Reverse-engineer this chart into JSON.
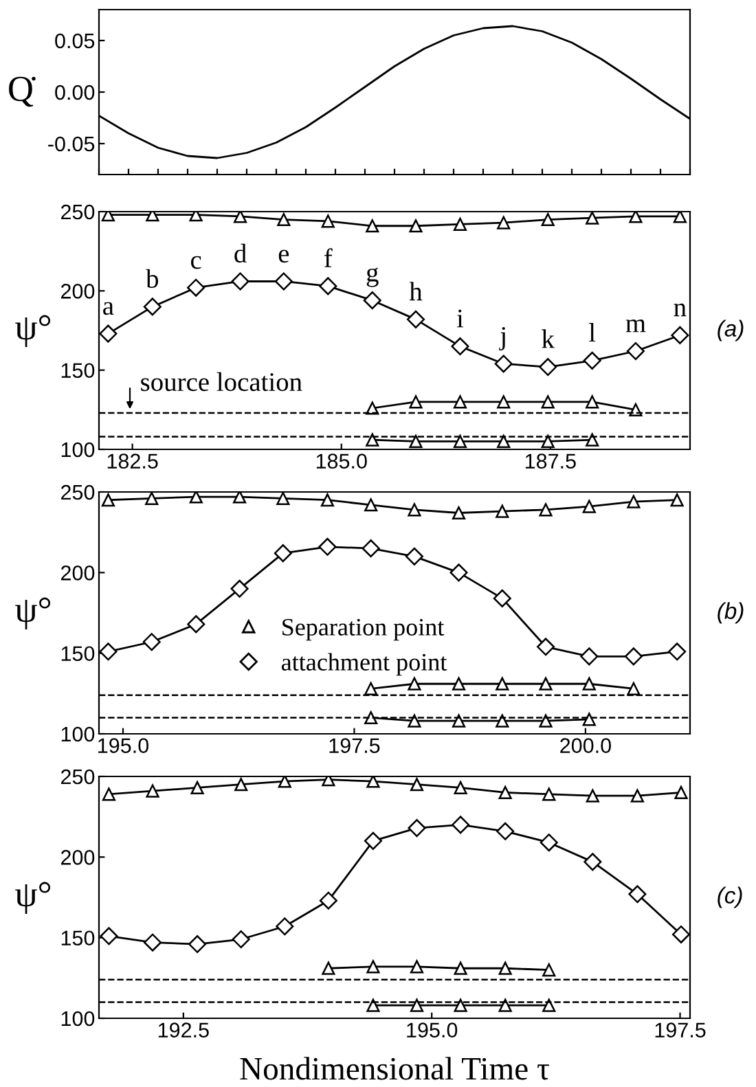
{
  "chart_data": [
    {
      "type": "line",
      "ylabel": "Q̇",
      "categories": [
        null,
        null,
        null,
        null,
        null,
        null,
        null,
        null,
        null,
        null,
        null,
        null,
        null,
        null,
        null,
        null,
        null,
        null,
        null,
        null,
        null
      ],
      "series": [
        {
          "color": "#000000",
          "values": [
            -0.023,
            -0.04,
            -0.054,
            -0.062,
            -0.064,
            -0.059,
            -0.049,
            -0.034,
            -0.015,
            0.005,
            0.025,
            0.042,
            0.055,
            0.062,
            0.064,
            0.059,
            0.048,
            0.032,
            0.013,
            -0.007,
            -0.026
          ]
        }
      ],
      "ylim": [
        -0.08,
        0.08
      ],
      "yticks": [
        {
          "value": -0.05,
          "label": "-0.05"
        },
        {
          "value": 0,
          "label": "0.00"
        },
        {
          "value": 0.05,
          "label": "0.05"
        }
      ],
      "tick_labels": "y",
      "marker": "none",
      "grid": false,
      "legend": false
    },
    {
      "type": "line",
      "ylabel": "ψ°",
      "xlim": [
        182.1,
        189.17
      ],
      "ylim": [
        100,
        250
      ],
      "xticks": [
        {
          "value": 182.5,
          "label": "182.5"
        },
        {
          "value": 185,
          "label": "185.0"
        },
        {
          "value": 187.5,
          "label": "187.5"
        }
      ],
      "yticks": [
        100,
        150,
        200,
        250
      ],
      "grid": false,
      "legend": false,
      "series": [
        {
          "color": "#000000",
          "marker": "triangle",
          "x": [
            182.21,
            182.74,
            183.26,
            183.79,
            184.31,
            184.84,
            185.37,
            185.89,
            186.42,
            186.94,
            187.47,
            188.0,
            188.52,
            189.05
          ],
          "values": [
            248,
            248,
            248,
            247,
            245,
            244,
            241,
            241,
            242,
            243,
            245,
            246,
            247,
            247
          ]
        },
        {
          "color": "#000000",
          "marker": "diamond",
          "x": [
            182.21,
            182.74,
            183.26,
            183.79,
            184.31,
            184.84,
            185.37,
            185.89,
            186.42,
            186.94,
            187.47,
            188.0,
            188.52,
            189.05
          ],
          "values": [
            173,
            190,
            202,
            206,
            206,
            203,
            194,
            182,
            165,
            154,
            152,
            156,
            162,
            172
          ]
        },
        {
          "color": "#000000",
          "marker": "triangle",
          "x": [
            185.37,
            185.89,
            186.42,
            186.94,
            187.47,
            188.0,
            188.52
          ],
          "values": [
            126,
            130,
            130,
            130,
            130,
            130,
            125
          ]
        },
        {
          "color": "#000000",
          "marker": "triangle",
          "x": [
            185.37,
            185.89,
            186.42,
            186.94,
            187.47,
            188.0
          ],
          "values": [
            106,
            105,
            105,
            105,
            105,
            106
          ]
        }
      ],
      "ref_lines": [
        {
          "axis": "y",
          "value": 123,
          "color": "#000000",
          "line_style": "dashed"
        },
        {
          "axis": "y",
          "value": 108,
          "color": "#000000",
          "line_style": "dashed"
        }
      ],
      "annotations": [
        {
          "text": "a",
          "x": 182.21,
          "y": 173
        },
        {
          "text": "b",
          "x": 182.74,
          "y": 190
        },
        {
          "text": "c",
          "x": 183.26,
          "y": 202
        },
        {
          "text": "d",
          "x": 183.79,
          "y": 206
        },
        {
          "text": "e",
          "x": 184.31,
          "y": 206
        },
        {
          "text": "f",
          "x": 184.84,
          "y": 203
        },
        {
          "text": "g",
          "x": 185.37,
          "y": 194
        },
        {
          "text": "h",
          "x": 185.89,
          "y": 182
        },
        {
          "text": "i",
          "x": 186.42,
          "y": 165
        },
        {
          "text": "j",
          "x": 186.94,
          "y": 154
        },
        {
          "text": "k",
          "x": 187.47,
          "y": 152
        },
        {
          "text": "l",
          "x": 188.0,
          "y": 156
        },
        {
          "text": "m",
          "x": 188.52,
          "y": 162
        },
        {
          "text": "n",
          "x": 189.05,
          "y": 172
        },
        {
          "text": "source location",
          "x": 182.47,
          "y": 123
        },
        "(a)"
      ]
    },
    {
      "type": "line",
      "ylabel": "ψ°",
      "xlim": [
        194.74,
        201.13
      ],
      "ylim": [
        100,
        250
      ],
      "xticks": [
        {
          "value": 195,
          "label": "195.0"
        },
        {
          "value": 197.5,
          "label": "197.5"
        },
        {
          "value": 200,
          "label": "200.0"
        }
      ],
      "yticks": [
        100,
        150,
        200,
        250
      ],
      "grid": false,
      "legend": "center",
      "series": [
        {
          "name": "Separation point",
          "color": "#000000",
          "marker": "triangle",
          "x": [
            194.84,
            195.31,
            195.79,
            196.26,
            196.73,
            197.21,
            197.68,
            198.15,
            198.63,
            199.1,
            199.57,
            200.04,
            200.52,
            200.99
          ],
          "values": [
            245,
            246,
            247,
            247,
            246,
            245,
            242,
            239,
            237,
            238,
            239,
            241,
            244,
            245
          ]
        },
        {
          "name": "attachment point",
          "color": "#000000",
          "marker": "diamond",
          "x": [
            194.84,
            195.31,
            195.79,
            196.26,
            196.73,
            197.21,
            197.68,
            198.15,
            198.63,
            199.1,
            199.57,
            200.04,
            200.52,
            200.99
          ],
          "values": [
            151,
            157,
            168,
            190,
            212,
            216,
            215,
            210,
            200,
            184,
            154,
            148,
            148,
            151
          ]
        },
        {
          "color": "#000000",
          "marker": "triangle",
          "x": [
            197.68,
            198.15,
            198.63,
            199.1,
            199.57,
            200.04,
            200.52
          ],
          "values": [
            128,
            131,
            131,
            131,
            131,
            131,
            128
          ]
        },
        {
          "color": "#000000",
          "marker": "triangle",
          "x": [
            197.68,
            198.15,
            198.63,
            199.1,
            199.57,
            200.04
          ],
          "values": [
            110,
            108,
            108,
            108,
            108,
            109
          ]
        }
      ],
      "ref_lines": [
        {
          "axis": "y",
          "value": 124,
          "color": "#000000",
          "line_style": "dashed"
        },
        {
          "axis": "y",
          "value": 110,
          "color": "#000000",
          "line_style": "dashed"
        }
      ],
      "annotations": [
        "(b)"
      ]
    },
    {
      "type": "line",
      "ylabel": "ψ°",
      "xlabel": "Nondimensional Time τ",
      "xlim": [
        191.65,
        197.6
      ],
      "ylim": [
        100,
        250
      ],
      "xticks": [
        {
          "value": 192.5,
          "label": "192.5"
        },
        {
          "value": 195,
          "label": "195.0"
        },
        {
          "value": 197.5,
          "label": "197.5"
        }
      ],
      "yticks": [
        100,
        150,
        200,
        250
      ],
      "grid": false,
      "legend": false,
      "series": [
        {
          "color": "#000000",
          "marker": "triangle",
          "x": [
            191.75,
            192.19,
            192.64,
            193.08,
            193.52,
            193.96,
            194.41,
            194.85,
            195.29,
            195.74,
            196.18,
            196.62,
            197.07,
            197.51
          ],
          "values": [
            239,
            241,
            243,
            245,
            247,
            248,
            247,
            245,
            243,
            240,
            239,
            238,
            238,
            240
          ]
        },
        {
          "color": "#000000",
          "marker": "diamond",
          "x": [
            191.75,
            192.19,
            192.64,
            193.08,
            193.52,
            193.96,
            194.41,
            194.85,
            195.29,
            195.74,
            196.18,
            196.62,
            197.07,
            197.51
          ],
          "values": [
            151,
            147,
            146,
            149,
            157,
            173,
            210,
            218,
            220,
            216,
            209,
            197,
            177,
            152
          ]
        },
        {
          "color": "#000000",
          "marker": "triangle",
          "x": [
            193.96,
            194.41,
            194.85,
            195.29,
            195.74,
            196.18
          ],
          "values": [
            131,
            132,
            132,
            131,
            131,
            130
          ]
        },
        {
          "color": "#000000",
          "marker": "triangle",
          "x": [
            194.41,
            194.85,
            195.29,
            195.74,
            196.18
          ],
          "values": [
            108,
            108,
            108,
            108,
            108
          ]
        }
      ],
      "ref_lines": [
        {
          "axis": "y",
          "value": 124,
          "color": "#000000",
          "line_style": "dashed"
        },
        {
          "axis": "y",
          "value": 110,
          "color": "#000000",
          "line_style": "dashed"
        }
      ],
      "annotations": [
        "(c)"
      ]
    }
  ]
}
